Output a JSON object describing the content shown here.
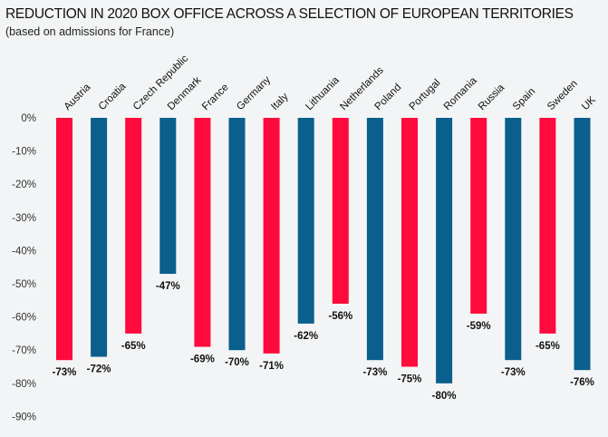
{
  "title": "REDUCTION IN 2020 BOX OFFICE ACROSS A SELECTION OF EUROPEAN TERRITORIES",
  "subtitle": "(based on admissions for France)",
  "colors": {
    "red": "#ff0a3c",
    "blue": "#0a5f8c",
    "background": "#f2f4f5"
  },
  "chart_data": {
    "type": "bar",
    "title": "REDUCTION IN 2020 BOX OFFICE ACROSS A SELECTION OF EUROPEAN TERRITORIES",
    "subtitle": "(based on admissions for France)",
    "xlabel": "",
    "ylabel": "",
    "ylim": [
      -90,
      0
    ],
    "yticks": [
      0,
      -10,
      -20,
      -30,
      -40,
      -50,
      -60,
      -70,
      -80,
      -90
    ],
    "ytick_labels": [
      "0%",
      "-10%",
      "-20%",
      "-30%",
      "-40%",
      "-50%",
      "-60%",
      "-70%",
      "-80%",
      "-90%"
    ],
    "categories": [
      "Austria",
      "Croatia",
      "Czech Republic",
      "Denmark",
      "France",
      "Germany",
      "Italy",
      "Lithuania",
      "Netherlands",
      "Poland",
      "Portugal",
      "Romania",
      "Russia",
      "Spain",
      "Sweden",
      "UK"
    ],
    "values": [
      -73,
      -72,
      -65,
      -47,
      -69,
      -70,
      -71,
      -62,
      -56,
      -73,
      -75,
      -80,
      -59,
      -73,
      -65,
      -76
    ],
    "data_labels": [
      "-73%",
      "-72%",
      "-65%",
      "-47%",
      "-69%",
      "-70%",
      "-71%",
      "-62%",
      "-56%",
      "-73%",
      "-75%",
      "-80%",
      "-59%",
      "-73%",
      "-65%",
      "-76%"
    ],
    "bar_colors": [
      "red",
      "blue",
      "red",
      "blue",
      "red",
      "blue",
      "red",
      "blue",
      "red",
      "blue",
      "red",
      "blue",
      "red",
      "blue",
      "red",
      "blue"
    ],
    "grid": false,
    "legend": "none"
  }
}
